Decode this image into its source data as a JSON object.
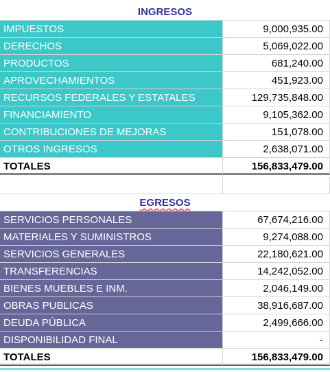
{
  "ingresos": {
    "title": "INGRESOS",
    "rows": [
      {
        "label": "IMPUESTOS",
        "amount": "9,000,935.00"
      },
      {
        "label": "DERECHOS",
        "amount": "5,069,022.00"
      },
      {
        "label": "PRODUCTOS",
        "amount": "681,240.00"
      },
      {
        "label": "APROVECHAMIENTOS",
        "amount": "451,923.00"
      },
      {
        "label": "RECURSOS FEDERALES Y ESTATALES",
        "amount": "129,735,848.00"
      },
      {
        "label": "FINANCIAMIENTO",
        "amount": "9,105,362.00"
      },
      {
        "label": "CONTRIBUCIONES DE MEJORAS",
        "amount": "151,078.00"
      },
      {
        "label": "OTROS INGRESOS",
        "amount": "2,638,071.00"
      }
    ],
    "total": {
      "label": "TOTALES",
      "amount": "156,833,479.00"
    }
  },
  "egresos": {
    "title": "EGRESOS",
    "rows": [
      {
        "label": "SERVICIOS PERSONALES",
        "amount": "67,674,216.00"
      },
      {
        "label": "MATERIALES Y SUMINISTROS",
        "amount": "9,274,088.00"
      },
      {
        "label": "SERVICIOS GENERALES",
        "amount": "22,180,621.00"
      },
      {
        "label": "TRANSFERENCIAS",
        "amount": "14,242,052.00"
      },
      {
        "label": "BIENES MUEBLES E INM.",
        "amount": "2,046,149.00"
      },
      {
        "label": "OBRAS PUBLICAS",
        "amount": "38,916,687.00"
      },
      {
        "label": "DEUDA PÚBLICA",
        "amount": "2,499,666.00"
      },
      {
        "label": "DISPONIBILIDAD FINAL",
        "amount": "-"
      }
    ],
    "total": {
      "label": "TOTALES",
      "amount": "156,833,479.00"
    }
  }
}
